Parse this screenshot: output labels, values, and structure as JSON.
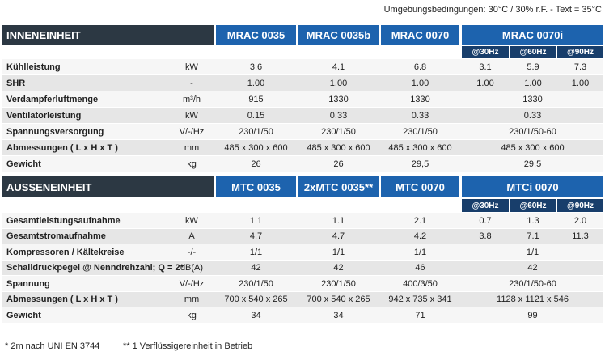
{
  "note": "Umgebungsbedingungen: 30°C / 30% r.F. - Text = 35°C",
  "sections": [
    {
      "title": "INNENEINHEIT",
      "models": [
        "MRAC 0035",
        "MRAC 0035b",
        "MRAC 0070",
        "MRAC 0070i"
      ],
      "subcolumns": [
        "@30Hz",
        "@60Hz",
        "@90Hz"
      ],
      "rows": [
        {
          "label": "Kühlleistung",
          "unit": "kW",
          "values": [
            "3.6",
            "4.1",
            "6.8",
            [
              "3.1",
              "5.9",
              "7.3"
            ]
          ]
        },
        {
          "label": "SHR",
          "unit": "-",
          "values": [
            "1.00",
            "1.00",
            "1.00",
            [
              "1.00",
              "1.00",
              "1.00"
            ]
          ]
        },
        {
          "label": "Verdampferluftmenge",
          "unit": "m³/h",
          "values": [
            "915",
            "1330",
            "1330",
            "1330"
          ]
        },
        {
          "label": "Ventilatorleistung",
          "unit": "kW",
          "values": [
            "0.15",
            "0.33",
            "0.33",
            "0.33"
          ]
        },
        {
          "label": "Spannungsversorgung",
          "unit": "V/-/Hz",
          "values": [
            "230/1/50",
            "230/1/50",
            "230/1/50",
            "230/1/50-60"
          ]
        },
        {
          "label": "Abmessungen ( L x H x T )",
          "unit": "mm",
          "values": [
            "485 x 300 x 600",
            "485 x 300 x 600",
            "485 x 300 x 600",
            "485 x 300 x 600"
          ]
        },
        {
          "label": "Gewicht",
          "unit": "kg",
          "values": [
            "26",
            "26",
            "29,5",
            "29.5"
          ]
        }
      ]
    },
    {
      "title": "AUSSENEINHEIT",
      "models": [
        "MTC 0035",
        "2xMTC 0035**",
        "MTC 0070",
        "MTCi 0070"
      ],
      "subcolumns": [
        "@30Hz",
        "@60Hz",
        "@90Hz"
      ],
      "rows": [
        {
          "label": "Gesamtleistungsaufnahme",
          "unit": "kW",
          "values": [
            "1.1",
            "1.1",
            "2.1",
            [
              "0.7",
              "1.3",
              "2.0"
            ]
          ]
        },
        {
          "label": "Gesamtstromaufnahme",
          "unit": "A",
          "values": [
            "4.7",
            "4.7",
            "4.2",
            [
              "3.8",
              "7.1",
              "11.3"
            ]
          ]
        },
        {
          "label": "Kompressoren / Kältekreise",
          "unit": "-/-",
          "values": [
            "1/1",
            "1/1",
            "1/1",
            "1/1"
          ]
        },
        {
          "label": "Schalldruckpegel @ Nenndrehzahl; Q = 2*",
          "unit": "dB(A)",
          "values": [
            "42",
            "42",
            "46",
            "42"
          ]
        },
        {
          "label": "Spannung",
          "unit": "V/-/Hz",
          "values": [
            "230/1/50",
            "230/1/50",
            "400/3/50",
            "230/1/50-60"
          ]
        },
        {
          "label": "Abmessungen ( L x H x T )",
          "unit": "mm",
          "values": [
            "700 x 540 x 265",
            "700 x 540 x 265",
            "942 x 735 x 341",
            "1128 x 1121 x 546"
          ]
        },
        {
          "label": "Gewicht",
          "unit": "kg",
          "values": [
            "34",
            "34",
            "71",
            "99"
          ]
        }
      ]
    }
  ],
  "footnotes": [
    "* 2m nach UNI EN 3744",
    "** 1 Verflüssigereinheit in Betrieb"
  ]
}
